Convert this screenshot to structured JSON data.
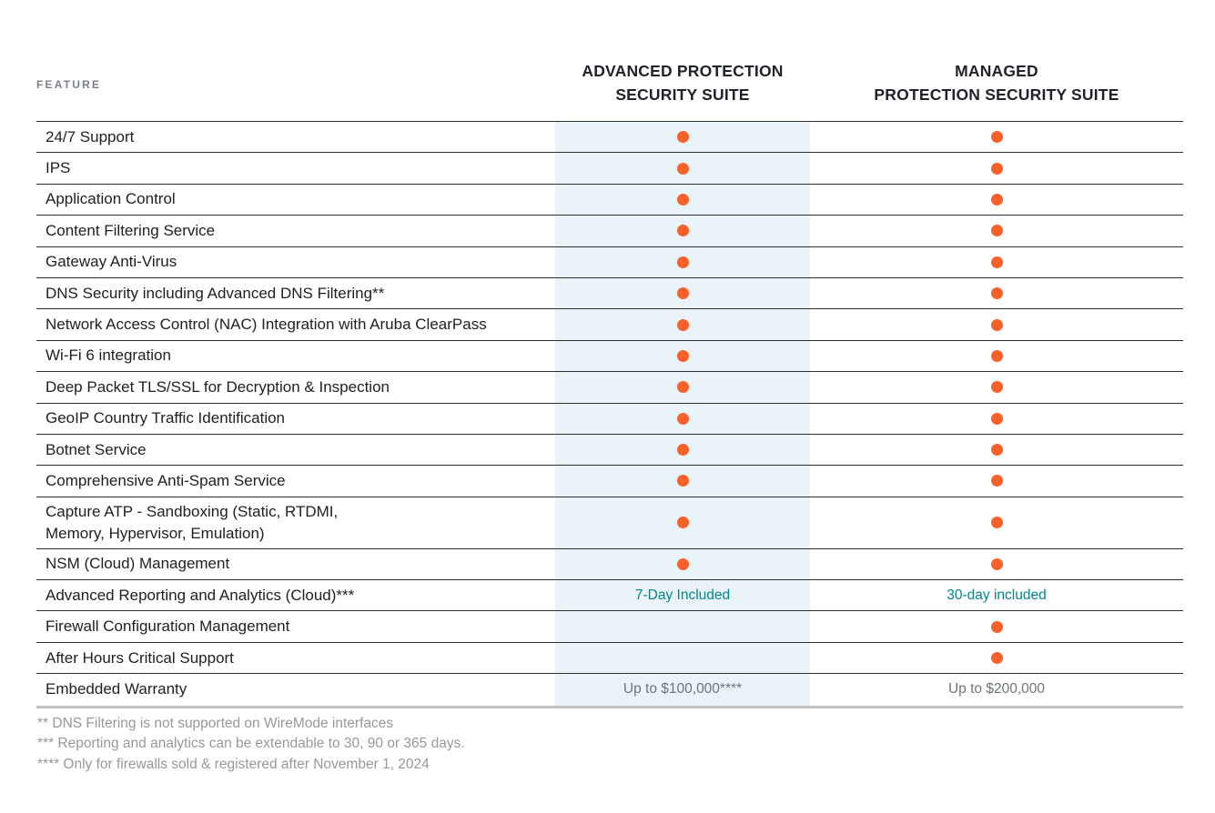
{
  "colors": {
    "accent_orange": "#F9612B",
    "advanced_col_bg": "#EAF4F8",
    "teal_text": "#00868D",
    "row_border": "#2E2E2E",
    "bottom_border": "#C0C2C4",
    "feature_text": "#1D1F21",
    "header_text": "#1F2329",
    "feature_label_text": "#7A8086",
    "muted_text": "#6E7478",
    "footnote_text": "#96989B"
  },
  "header": {
    "feature_label": "FEATURE",
    "columns": [
      {
        "id": "advanced",
        "label": "ADVANCED PROTECTION\nSECURITY SUITE"
      },
      {
        "id": "managed",
        "label": "MANAGED\nPROTECTION SECURITY SUITE"
      }
    ]
  },
  "table": {
    "rows": [
      {
        "feature": "24/7 Support",
        "advanced": {
          "type": "dot"
        },
        "managed": {
          "type": "dot"
        }
      },
      {
        "feature": "IPS",
        "advanced": {
          "type": "dot"
        },
        "managed": {
          "type": "dot"
        }
      },
      {
        "feature": "Application Control",
        "advanced": {
          "type": "dot"
        },
        "managed": {
          "type": "dot"
        }
      },
      {
        "feature": "Content Filtering Service",
        "advanced": {
          "type": "dot"
        },
        "managed": {
          "type": "dot"
        }
      },
      {
        "feature": "Gateway Anti-Virus",
        "advanced": {
          "type": "dot"
        },
        "managed": {
          "type": "dot"
        }
      },
      {
        "feature": "DNS Security including Advanced DNS Filtering**",
        "advanced": {
          "type": "dot"
        },
        "managed": {
          "type": "dot"
        }
      },
      {
        "feature": "Network Access Control (NAC) Integration with Aruba ClearPass",
        "advanced": {
          "type": "dot"
        },
        "managed": {
          "type": "dot"
        }
      },
      {
        "feature": "Wi-Fi 6 integration",
        "advanced": {
          "type": "dot"
        },
        "managed": {
          "type": "dot"
        }
      },
      {
        "feature": "Deep Packet TLS/SSL for Decryption & Inspection",
        "advanced": {
          "type": "dot"
        },
        "managed": {
          "type": "dot"
        }
      },
      {
        "feature": "GeoIP Country Traffic Identification",
        "advanced": {
          "type": "dot"
        },
        "managed": {
          "type": "dot"
        }
      },
      {
        "feature": "Botnet Service",
        "advanced": {
          "type": "dot"
        },
        "managed": {
          "type": "dot"
        }
      },
      {
        "feature": "Comprehensive Anti-Spam Service",
        "advanced": {
          "type": "dot"
        },
        "managed": {
          "type": "dot"
        }
      },
      {
        "feature": "Capture ATP -  Sandboxing (Static, RTDMI,\nMemory, Hypervisor, Emulation)",
        "tall": true,
        "advanced": {
          "type": "dot"
        },
        "managed": {
          "type": "dot"
        }
      },
      {
        "feature": "NSM (Cloud) Management",
        "advanced": {
          "type": "dot"
        },
        "managed": {
          "type": "dot"
        }
      },
      {
        "feature": "Advanced Reporting and Analytics (Cloud)***",
        "advanced": {
          "type": "text",
          "value": "7-Day Included",
          "style": "teal"
        },
        "managed": {
          "type": "text",
          "value": "30-day included",
          "style": "teal"
        }
      },
      {
        "feature": "Firewall Configuration Management",
        "advanced": {
          "type": "empty"
        },
        "managed": {
          "type": "dot"
        }
      },
      {
        "feature": "After Hours Critical Support",
        "advanced": {
          "type": "empty"
        },
        "managed": {
          "type": "dot"
        }
      },
      {
        "feature": "Embedded Warranty",
        "advanced": {
          "type": "text",
          "value": "Up to $100,000****",
          "style": "muted"
        },
        "managed": {
          "type": "text",
          "value": "Up to $200,000",
          "style": "muted"
        }
      }
    ]
  },
  "footnotes": [
    "** DNS Filtering is not supported on WireMode interfaces",
    "*** Reporting and analytics can be extendable to 30, 90 or 365 days.",
    "**** Only for firewalls sold & registered after November 1, 2024"
  ]
}
